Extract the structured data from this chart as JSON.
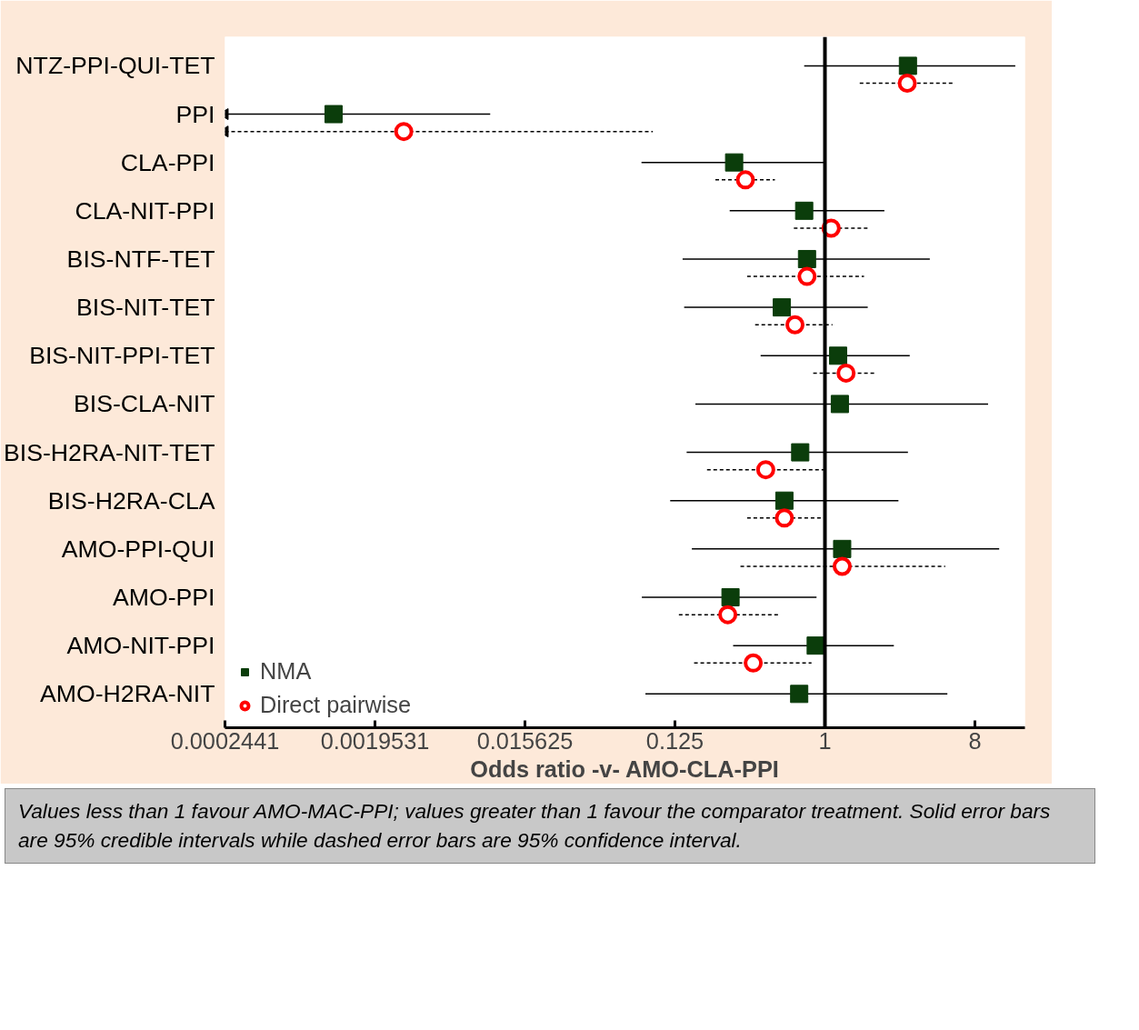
{
  "chart_data": {
    "type": "scatter",
    "orientation": "horizontal",
    "xlabel": "Odds ratio -v- AMO-CLA-PPI",
    "log": "x",
    "xlim": [
      0.0002441,
      16
    ],
    "xticks": [
      0.0002441,
      0.0019531,
      0.015625,
      0.125,
      1,
      8
    ],
    "grid": false,
    "legend": "bottom left",
    "categories": [
      "NTZ-PPI-QUI-TET",
      "PPI",
      "CLA-PPI",
      "CLA-NIT-PPI",
      "BIS-NTF-TET",
      "BIS-NIT-TET",
      "BIS-NIT-PPI-TET",
      "BIS-CLA-NIT",
      "BIS-H2RA-NIT-TET",
      "BIS-H2RA-CLA",
      "AMO-PPI-QUI",
      "AMO-PPI",
      "AMO-NIT-PPI",
      "AMO-H2RA-NIT"
    ],
    "ref_lines": [
      {
        "axis": "x",
        "value": 1,
        "color": "#000000"
      }
    ],
    "annotations": [
      "Values less than 1 favour AMO-MAC-PPI; values greater than 1 favour the comparator treatment. Solid error bars are 95% credible intervals while dashed error bars are 95% confidence interval."
    ],
    "series": [
      {
        "name": "NMA",
        "color": "#0b3d0b",
        "marker": "square",
        "line_style": "solid",
        "values": [
          3.16,
          0.0011,
          0.284,
          0.75,
          0.78,
          0.55,
          1.2,
          1.23,
          0.71,
          0.57,
          1.27,
          0.27,
          0.88,
          0.7
        ],
        "errors": [
          [
            0.75,
            14.0
          ],
          [
            0.0002441,
            0.00965
          ],
          [
            0.0786,
            1.0
          ],
          [
            0.267,
            2.28
          ],
          [
            0.139,
            4.28
          ],
          [
            0.142,
            1.81
          ],
          [
            0.41,
            3.24
          ],
          [
            0.166,
            9.6
          ],
          [
            0.147,
            3.16
          ],
          [
            0.117,
            2.77
          ],
          [
            0.158,
            11.2
          ],
          [
            0.079,
            0.89
          ],
          [
            0.28,
            2.6
          ],
          [
            0.083,
            5.46
          ]
        ]
      },
      {
        "name": "Direct pairwise",
        "color": "#ff0000",
        "marker": "circle",
        "line_style": "dashed",
        "values": [
          3.13,
          0.00291,
          0.332,
          1.09,
          0.78,
          0.66,
          1.34,
          null,
          0.44,
          0.57,
          1.27,
          0.26,
          0.37,
          null
        ],
        "errors": [
          [
            1.62,
            5.87
          ],
          [
            0.0002441,
            0.092
          ],
          [
            0.219,
            0.5
          ],
          [
            0.65,
            1.83
          ],
          [
            0.34,
            1.72
          ],
          [
            0.38,
            1.11
          ],
          [
            0.85,
            2.0
          ],
          null,
          [
            0.195,
            1.0
          ],
          [
            0.34,
            0.95
          ],
          [
            0.31,
            5.3
          ],
          [
            0.132,
            0.53
          ],
          [
            0.163,
            0.83
          ],
          null
        ]
      }
    ]
  }
}
